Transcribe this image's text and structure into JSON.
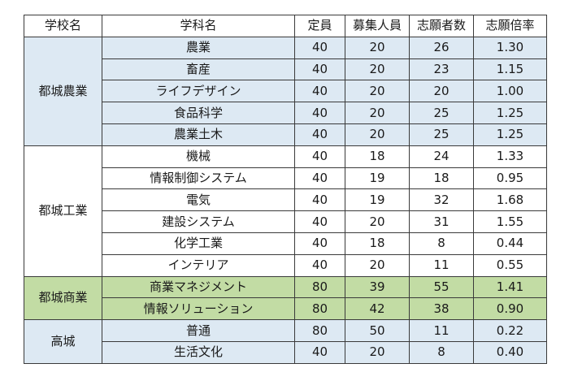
{
  "header": {
    "school": "学校名",
    "department": "学科名",
    "capacity": "定員",
    "recruits": "募集人員",
    "applicants": "志願者数",
    "ratio": "志願倍率"
  },
  "colors": {
    "blue_group": "#dde9f3",
    "white_group": "#ffffff",
    "green_group": "#c2dca4",
    "border": "#3a3a3a"
  },
  "groups": [
    {
      "school": "都城農業",
      "style": "blue",
      "rows": [
        {
          "department": "農業",
          "capacity": "40",
          "recruits": "20",
          "applicants": "26",
          "ratio": "1.30"
        },
        {
          "department": "畜産",
          "capacity": "40",
          "recruits": "20",
          "applicants": "23",
          "ratio": "1.15"
        },
        {
          "department": "ライフデザイン",
          "capacity": "40",
          "recruits": "20",
          "applicants": "20",
          "ratio": "1.00"
        },
        {
          "department": "食品科学",
          "capacity": "40",
          "recruits": "20",
          "applicants": "25",
          "ratio": "1.25"
        },
        {
          "department": "農業土木",
          "capacity": "40",
          "recruits": "20",
          "applicants": "25",
          "ratio": "1.25"
        }
      ]
    },
    {
      "school": "都城工業",
      "style": "white",
      "rows": [
        {
          "department": "機械",
          "capacity": "40",
          "recruits": "18",
          "applicants": "24",
          "ratio": "1.33"
        },
        {
          "department": "情報制御システム",
          "capacity": "40",
          "recruits": "19",
          "applicants": "18",
          "ratio": "0.95"
        },
        {
          "department": "電気",
          "capacity": "40",
          "recruits": "19",
          "applicants": "32",
          "ratio": "1.68"
        },
        {
          "department": "建設システム",
          "capacity": "40",
          "recruits": "20",
          "applicants": "31",
          "ratio": "1.55"
        },
        {
          "department": "化学工業",
          "capacity": "40",
          "recruits": "18",
          "applicants": "8",
          "ratio": "0.44"
        },
        {
          "department": "インテリア",
          "capacity": "40",
          "recruits": "20",
          "applicants": "11",
          "ratio": "0.55"
        }
      ]
    },
    {
      "school": "都城商業",
      "style": "green",
      "rows": [
        {
          "department": "商業マネジメント",
          "capacity": "80",
          "recruits": "39",
          "applicants": "55",
          "ratio": "1.41"
        },
        {
          "department": "情報ソリューション",
          "capacity": "80",
          "recruits": "42",
          "applicants": "38",
          "ratio": "0.90"
        }
      ]
    },
    {
      "school": "高城",
      "style": "blue",
      "rows": [
        {
          "department": "普通",
          "capacity": "80",
          "recruits": "50",
          "applicants": "11",
          "ratio": "0.22"
        },
        {
          "department": "生活文化",
          "capacity": "40",
          "recruits": "20",
          "applicants": "8",
          "ratio": "0.40"
        }
      ]
    }
  ]
}
